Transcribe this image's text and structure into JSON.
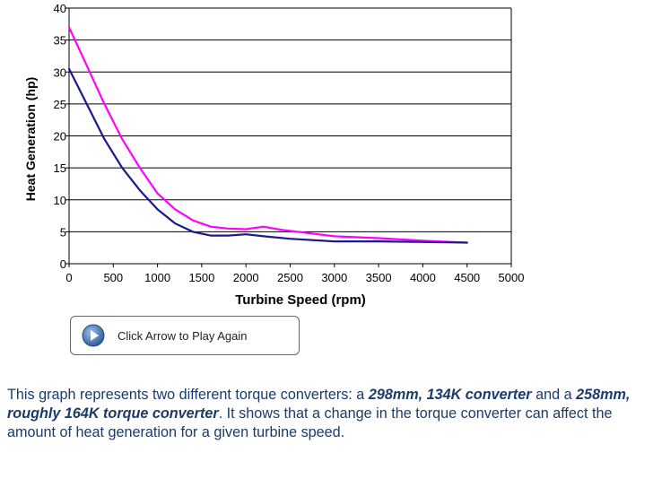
{
  "chart_data": {
    "type": "line",
    "xlabel": "Turbine Speed (rpm)",
    "ylabel": "Heat Generation (hp)",
    "xlim": [
      0,
      5000
    ],
    "ylim": [
      0,
      40
    ],
    "xticks": [
      0,
      500,
      1000,
      1500,
      2000,
      2500,
      3000,
      3500,
      4000,
      4500,
      5000
    ],
    "yticks": [
      0,
      5,
      10,
      15,
      20,
      25,
      30,
      35,
      40
    ],
    "grid": "horizontal",
    "series": [
      {
        "color": "#ff00ff",
        "points": [
          [
            0,
            37
          ],
          [
            200,
            31
          ],
          [
            400,
            25
          ],
          [
            600,
            19.5
          ],
          [
            800,
            15
          ],
          [
            1000,
            11
          ],
          [
            1200,
            8.5
          ],
          [
            1400,
            6.8
          ],
          [
            1600,
            5.8
          ],
          [
            1800,
            5.5
          ],
          [
            2000,
            5.4
          ],
          [
            2200,
            5.8
          ],
          [
            2400,
            5.3
          ],
          [
            2700,
            4.8
          ],
          [
            3000,
            4.3
          ],
          [
            3500,
            4.0
          ],
          [
            4000,
            3.6
          ],
          [
            4500,
            3.3
          ]
        ]
      },
      {
        "color": "#1a1a8c",
        "points": [
          [
            0,
            30.5
          ],
          [
            200,
            25
          ],
          [
            400,
            19.5
          ],
          [
            600,
            15
          ],
          [
            800,
            11.5
          ],
          [
            1000,
            8.5
          ],
          [
            1200,
            6.3
          ],
          [
            1400,
            5
          ],
          [
            1600,
            4.4
          ],
          [
            1800,
            4.4
          ],
          [
            2000,
            4.6
          ],
          [
            2200,
            4.3
          ],
          [
            2500,
            3.9
          ],
          [
            3000,
            3.5
          ],
          [
            3500,
            3.5
          ],
          [
            4000,
            3.4
          ],
          [
            4500,
            3.3
          ]
        ]
      }
    ]
  },
  "button": {
    "label": "Click Arrow to Play Again",
    "icon": "play-icon"
  },
  "description": {
    "t1": "This graph represents two different torque converters: a ",
    "b1": "298mm, 134K converter",
    "t2": " and a ",
    "b2": "258mm, roughly 164K torque converter",
    "t3": ". It shows that a change in the torque converter can affect the amount of heat generation for a given turbine speed."
  }
}
